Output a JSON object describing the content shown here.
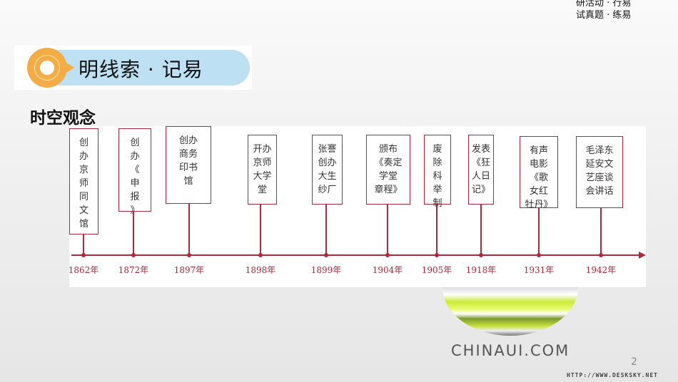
{
  "top_note": {
    "line1": "研活动 · 行易",
    "line2": "试真题 · 练易"
  },
  "banner": {
    "title": "明线索 · 记易",
    "accent": "#f4ad45",
    "pill_color": "#bde0f2"
  },
  "heading": "时空观念",
  "timeline": {
    "color": "#b0283d",
    "events": [
      {
        "year": "1862年",
        "text": "创\n办\n京\n师\n同\n文\n馆"
      },
      {
        "year": "1872年",
        "text": "创\n办\n《\n申\n报\n》"
      },
      {
        "year": "1897年",
        "text": "创办\n商务\n印书\n馆"
      },
      {
        "year": "1898年",
        "text": "开办\n京师\n大学\n堂"
      },
      {
        "year": "1899年",
        "text": "张謇\n创办\n大生\n纱厂"
      },
      {
        "year": "1904年",
        "text": "颁布\n《奏定\n学堂\n章程》"
      },
      {
        "year": "1905年",
        "text": "废\n除\n科\n举\n制"
      },
      {
        "year": "1918年",
        "text": "发表\n《狂\n人日\n记》"
      },
      {
        "year": "1931年",
        "text": "有声\n电影\n《歌\n女红\n牡丹》"
      },
      {
        "year": "1942年",
        "text": "毛泽东\n延安文\n艺座谈\n会讲话"
      }
    ]
  },
  "logo": "CHINAUI.COM",
  "page_number": "2",
  "watermark": "HTTP://WWW.DESKSKY.NET"
}
